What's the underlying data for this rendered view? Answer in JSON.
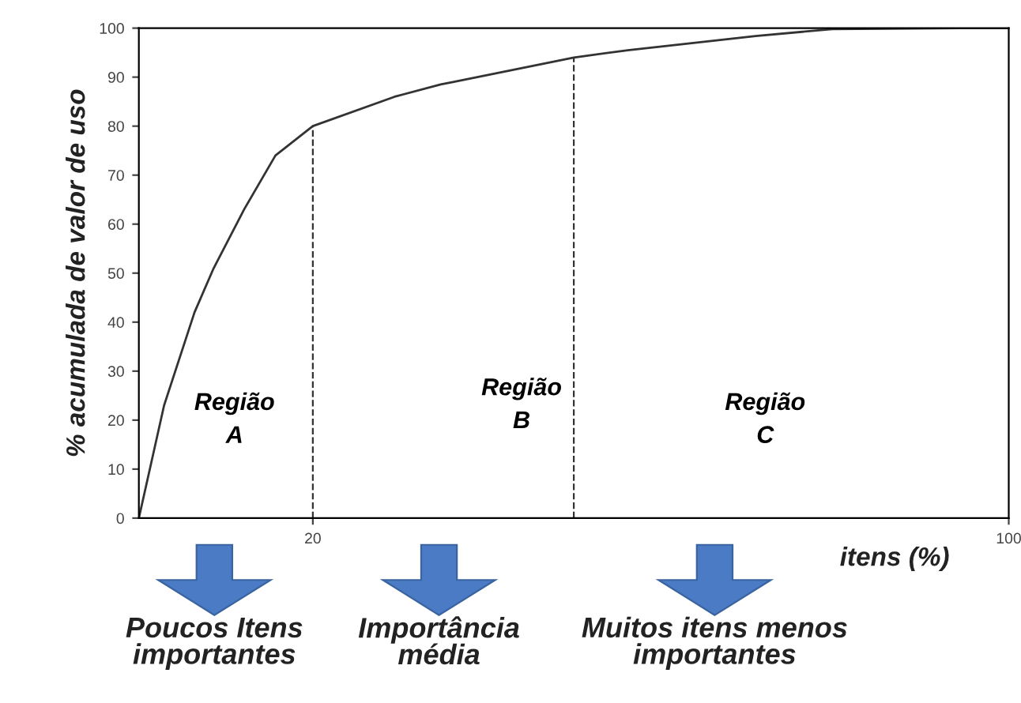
{
  "chart_data": {
    "type": "line",
    "x": [
      0,
      2.9,
      6.4,
      8.6,
      12.1,
      15.7,
      20,
      29.4,
      34.7,
      36.1,
      50,
      56.2,
      70.9,
      79.7,
      94.4,
      100
    ],
    "series": [
      {
        "color": "#333333",
        "values": [
          0,
          23,
          42,
          51,
          63,
          74,
          80,
          86,
          88.5,
          89,
          94,
          95.5,
          98.4,
          99.8,
          100,
          100
        ]
      }
    ],
    "xlim": [
      0,
      100
    ],
    "xticks": [
      20,
      100
    ],
    "ylim": [
      0,
      100
    ],
    "yticks": [
      0,
      10,
      20,
      30,
      40,
      50,
      60,
      70,
      80,
      90,
      100
    ],
    "xlabel": "itens (%)",
    "ylabel": "% acumulada de valor de uso",
    "ref_lines": [
      {
        "axis": "x",
        "value": 20,
        "line_style": "dashed",
        "color": "#333333"
      },
      {
        "axis": "x",
        "value": 50,
        "line_style": "dashed",
        "color": "#333333"
      }
    ],
    "annotations": [
      "Região\nA",
      "Região\nB",
      "Região\nC",
      "Poucos Itens\nimportantes",
      "Importância\nmédia",
      "Muitos itens menos\nimportantes"
    ],
    "grid": false,
    "legend": false,
    "marker": "none",
    "line_style": "solid"
  }
}
